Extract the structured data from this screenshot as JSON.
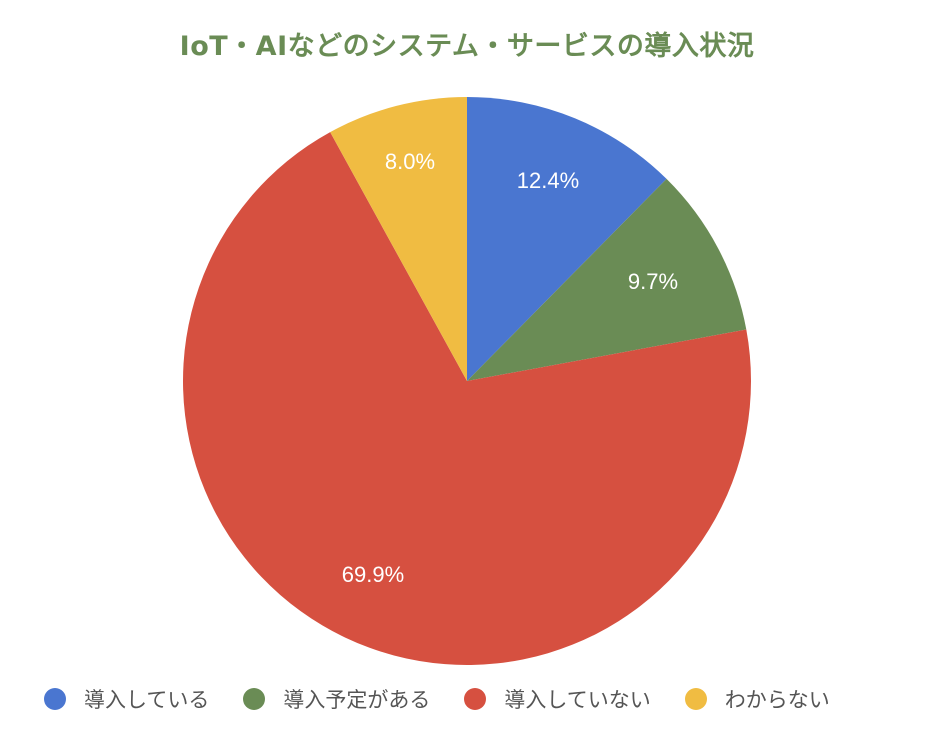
{
  "chart_data": {
    "type": "pie",
    "title": "IoT・AIなどのシステム・サービスの導入状況",
    "categories": [
      "導入している",
      "導入予定がある",
      "導入していない",
      "わからない"
    ],
    "values": [
      12.4,
      9.7,
      69.9,
      8.0
    ],
    "labels": [
      "12.4%",
      "9.7%",
      "69.9%",
      "8.0%"
    ],
    "colors": [
      "#4a76d0",
      "#6a8c55",
      "#d65040",
      "#f0bc42"
    ],
    "legend_position": "bottom",
    "start_angle": "12 o'clock, clockwise"
  },
  "title": "IoT・AIなどのシステム・サービスの導入状況",
  "legend": [
    {
      "label": "導入している",
      "color": "#4a76d0"
    },
    {
      "label": "導入予定がある",
      "color": "#6a8c55"
    },
    {
      "label": "導入していない",
      "color": "#d65040"
    },
    {
      "label": "わからない",
      "color": "#f0bc42"
    }
  ],
  "slice_labels": [
    "12.4%",
    "9.7%",
    "69.9%",
    "8.0%"
  ]
}
